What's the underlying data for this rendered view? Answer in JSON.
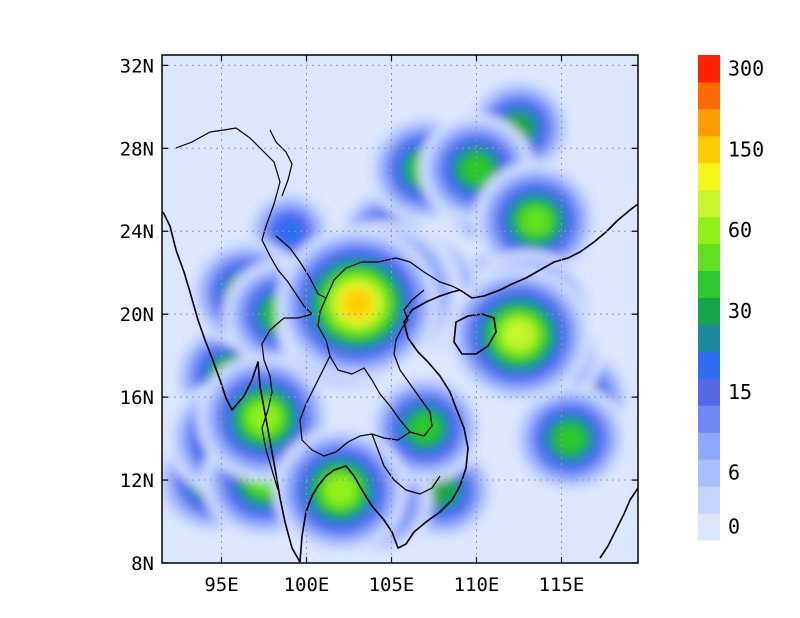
{
  "map": {
    "lon_range": [
      91.5,
      119.5
    ],
    "lat_range": [
      8,
      32.5
    ],
    "lon_ticks": [
      {
        "value": 95,
        "label": "95E"
      },
      {
        "value": 100,
        "label": "100E"
      },
      {
        "value": 105,
        "label": "105E"
      },
      {
        "value": 110,
        "label": "110E"
      },
      {
        "value": 115,
        "label": "115E"
      }
    ],
    "lat_ticks": [
      {
        "value": 8,
        "label": "8N"
      },
      {
        "value": 12,
        "label": "12N"
      },
      {
        "value": 16,
        "label": "16N"
      },
      {
        "value": 20,
        "label": "20N"
      },
      {
        "value": 24,
        "label": "24N"
      },
      {
        "value": 28,
        "label": "28N"
      },
      {
        "value": 32,
        "label": "32N"
      }
    ],
    "background_color": "#dce6ff"
  },
  "colorbar": {
    "levels": [
      0,
      3,
      6,
      9,
      12,
      15,
      20,
      25,
      30,
      40,
      50,
      60,
      80,
      100,
      150,
      200,
      250,
      300
    ],
    "colors": [
      "#dce6ff",
      "#c3d4ff",
      "#a9bfff",
      "#8ea8ff",
      "#7088f5",
      "#5569e8",
      "#2f6df5",
      "#1a8aa0",
      "#12a64a",
      "#2cc82c",
      "#5ee01e",
      "#92f01a",
      "#c6f52e",
      "#f5f51c",
      "#ffcc00",
      "#ff9a00",
      "#ff6a00",
      "#ff2200"
    ],
    "labels": [
      {
        "value": 0,
        "text": "0"
      },
      {
        "value": 6,
        "text": "6"
      },
      {
        "value": 15,
        "text": "15"
      },
      {
        "value": 30,
        "text": "30"
      },
      {
        "value": 60,
        "text": "60"
      },
      {
        "value": 150,
        "text": "150"
      },
      {
        "value": 300,
        "text": "300"
      }
    ]
  },
  "precip_cells": [
    {
      "lon": 103,
      "lat": 20.5,
      "value": 160
    },
    {
      "lon": 104.5,
      "lat": 21,
      "value": 100
    },
    {
      "lon": 102.5,
      "lat": 19.5,
      "value": 90
    },
    {
      "lon": 105,
      "lat": 21,
      "value": 80
    },
    {
      "lon": 106.5,
      "lat": 21,
      "value": 70
    },
    {
      "lon": 112.5,
      "lat": 19,
      "value": 90
    },
    {
      "lon": 113,
      "lat": 20,
      "value": 60
    },
    {
      "lon": 111.5,
      "lat": 20.5,
      "value": 50
    },
    {
      "lon": 114,
      "lat": 18,
      "value": 40
    },
    {
      "lon": 115.5,
      "lat": 14,
      "value": 40
    },
    {
      "lon": 116,
      "lat": 16,
      "value": 30
    },
    {
      "lon": 95.5,
      "lat": 14,
      "value": 50
    },
    {
      "lon": 94.5,
      "lat": 12,
      "value": 40
    },
    {
      "lon": 97.5,
      "lat": 15,
      "value": 60
    },
    {
      "lon": 97.5,
      "lat": 12,
      "value": 50
    },
    {
      "lon": 95.5,
      "lat": 17,
      "value": 40
    },
    {
      "lon": 96.5,
      "lat": 21,
      "value": 40
    },
    {
      "lon": 98.5,
      "lat": 20,
      "value": 40
    },
    {
      "lon": 102,
      "lat": 11.5,
      "value": 60
    },
    {
      "lon": 104,
      "lat": 11,
      "value": 40
    },
    {
      "lon": 107,
      "lat": 14.5,
      "value": 40
    },
    {
      "lon": 108,
      "lat": 11.5,
      "value": 30
    },
    {
      "lon": 107,
      "lat": 27,
      "value": 40
    },
    {
      "lon": 110,
      "lat": 27,
      "value": 40
    },
    {
      "lon": 111,
      "lat": 25.5,
      "value": 30
    },
    {
      "lon": 113.5,
      "lat": 24.5,
      "value": 50
    },
    {
      "lon": 112.5,
      "lat": 29,
      "value": 30
    },
    {
      "lon": 104.5,
      "lat": 24,
      "value": 20
    },
    {
      "lon": 101,
      "lat": 18,
      "value": 20
    },
    {
      "lon": 99,
      "lat": 24,
      "value": 20
    }
  ]
}
